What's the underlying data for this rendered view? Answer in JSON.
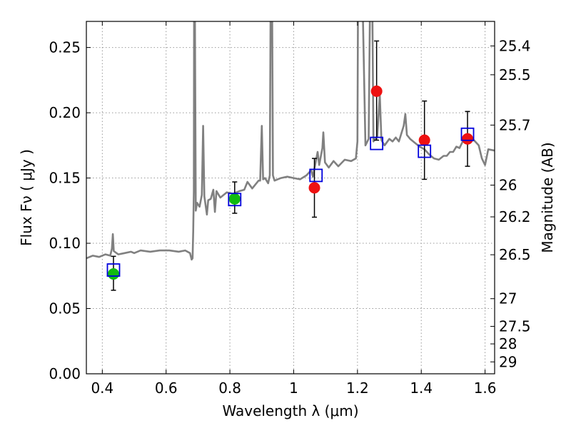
{
  "chart_data": {
    "type": "scatter",
    "xlabel": "Wavelength  λ (μm)",
    "ylabel": "Flux  Fν ( μJy )",
    "ylabel_right": "Magnitude (AB)",
    "xlim": [
      0.35,
      1.63
    ],
    "ylim": [
      0.0,
      0.27
    ],
    "grid": true,
    "x_ticks": [
      {
        "value": 0.4,
        "label": "0.4"
      },
      {
        "value": 0.6,
        "label": "0.6"
      },
      {
        "value": 0.8,
        "label": "0.8"
      },
      {
        "value": 1.0,
        "label": "1"
      },
      {
        "value": 1.2,
        "label": "1.2"
      },
      {
        "value": 1.4,
        "label": "1.4"
      },
      {
        "value": 1.6,
        "label": "1.6"
      }
    ],
    "y_ticks": [
      {
        "value": 0.0,
        "label": "0.00"
      },
      {
        "value": 0.05,
        "label": "0.05"
      },
      {
        "value": 0.1,
        "label": "0.10"
      },
      {
        "value": 0.15,
        "label": "0.15"
      },
      {
        "value": 0.2,
        "label": "0.20"
      },
      {
        "value": 0.25,
        "label": "0.25"
      }
    ],
    "right_ticks": [
      {
        "value": 25.4,
        "label": "25.4"
      },
      {
        "value": 25.5,
        "label": "25.5"
      },
      {
        "value": 25.7,
        "label": "25.7"
      },
      {
        "value": 26.0,
        "label": "26"
      },
      {
        "value": 26.2,
        "label": "26.2"
      },
      {
        "value": 26.5,
        "label": "26.5"
      },
      {
        "value": 27.0,
        "label": "27"
      },
      {
        "value": 27.5,
        "label": "27.5"
      },
      {
        "value": 28.0,
        "label": "28"
      },
      {
        "value": 29.0,
        "label": "29"
      }
    ],
    "colors": {
      "spectrum": "#808080",
      "optical_points": "#11bb11",
      "nir_points": "#ee1111",
      "model_boxes": "#0000dd",
      "error_bars": "#000000",
      "grid": "#999999"
    },
    "spectrum": [
      [
        0.35,
        0.0885
      ],
      [
        0.37,
        0.0905
      ],
      [
        0.39,
        0.0895
      ],
      [
        0.41,
        0.0915
      ],
      [
        0.425,
        0.0905
      ],
      [
        0.43,
        0.096
      ],
      [
        0.433,
        0.107
      ],
      [
        0.436,
        0.094
      ],
      [
        0.45,
        0.0915
      ],
      [
        0.47,
        0.0925
      ],
      [
        0.49,
        0.0935
      ],
      [
        0.5,
        0.0925
      ],
      [
        0.52,
        0.0945
      ],
      [
        0.55,
        0.0935
      ],
      [
        0.58,
        0.0945
      ],
      [
        0.61,
        0.0945
      ],
      [
        0.64,
        0.0935
      ],
      [
        0.66,
        0.0945
      ],
      [
        0.675,
        0.0925
      ],
      [
        0.68,
        0.0875
      ],
      [
        0.683,
        0.0885
      ],
      [
        0.685,
        0.109
      ],
      [
        0.687,
        0.14
      ],
      [
        0.688,
        0.3
      ],
      [
        0.69,
        0.3
      ],
      [
        0.693,
        0.125
      ],
      [
        0.697,
        0.131
      ],
      [
        0.705,
        0.128
      ],
      [
        0.712,
        0.137
      ],
      [
        0.716,
        0.19
      ],
      [
        0.72,
        0.136
      ],
      [
        0.728,
        0.122
      ],
      [
        0.732,
        0.133
      ],
      [
        0.74,
        0.134
      ],
      [
        0.748,
        0.141
      ],
      [
        0.753,
        0.124
      ],
      [
        0.758,
        0.14
      ],
      [
        0.77,
        0.135
      ],
      [
        0.79,
        0.139
      ],
      [
        0.81,
        0.138
      ],
      [
        0.83,
        0.14
      ],
      [
        0.845,
        0.141
      ],
      [
        0.855,
        0.147
      ],
      [
        0.87,
        0.142
      ],
      [
        0.88,
        0.145
      ],
      [
        0.89,
        0.148
      ],
      [
        0.895,
        0.148
      ],
      [
        0.9,
        0.19
      ],
      [
        0.904,
        0.149
      ],
      [
        0.91,
        0.15
      ],
      [
        0.92,
        0.146
      ],
      [
        0.925,
        0.152
      ],
      [
        0.928,
        0.3
      ],
      [
        0.932,
        0.3
      ],
      [
        0.935,
        0.152
      ],
      [
        0.94,
        0.148
      ],
      [
        0.96,
        0.15
      ],
      [
        0.98,
        0.151
      ],
      [
        1.0,
        0.15
      ],
      [
        1.02,
        0.149
      ],
      [
        1.04,
        0.152
      ],
      [
        1.055,
        0.156
      ],
      [
        1.06,
        0.151
      ],
      [
        1.075,
        0.17
      ],
      [
        1.08,
        0.16
      ],
      [
        1.09,
        0.173
      ],
      [
        1.093,
        0.185
      ],
      [
        1.098,
        0.162
      ],
      [
        1.11,
        0.158
      ],
      [
        1.125,
        0.163
      ],
      [
        1.14,
        0.159
      ],
      [
        1.16,
        0.164
      ],
      [
        1.18,
        0.163
      ],
      [
        1.195,
        0.165
      ],
      [
        1.2,
        0.178
      ],
      [
        1.202,
        0.3
      ],
      [
        1.215,
        0.3
      ],
      [
        1.225,
        0.175
      ],
      [
        1.235,
        0.18
      ],
      [
        1.24,
        0.3
      ],
      [
        1.246,
        0.3
      ],
      [
        1.25,
        0.178
      ],
      [
        1.262,
        0.182
      ],
      [
        1.27,
        0.214
      ],
      [
        1.275,
        0.179
      ],
      [
        1.285,
        0.175
      ],
      [
        1.3,
        0.18
      ],
      [
        1.31,
        0.178
      ],
      [
        1.32,
        0.181
      ],
      [
        1.33,
        0.178
      ],
      [
        1.345,
        0.19
      ],
      [
        1.35,
        0.199
      ],
      [
        1.355,
        0.183
      ],
      [
        1.365,
        0.18
      ],
      [
        1.38,
        0.177
      ],
      [
        1.395,
        0.174
      ],
      [
        1.41,
        0.172
      ],
      [
        1.425,
        0.168
      ],
      [
        1.44,
        0.165
      ],
      [
        1.455,
        0.164
      ],
      [
        1.47,
        0.167
      ],
      [
        1.48,
        0.167
      ],
      [
        1.49,
        0.17
      ],
      [
        1.5,
        0.17
      ],
      [
        1.51,
        0.174
      ],
      [
        1.52,
        0.173
      ],
      [
        1.53,
        0.178
      ],
      [
        1.54,
        0.182
      ],
      [
        1.55,
        0.178
      ],
      [
        1.565,
        0.179
      ],
      [
        1.58,
        0.175
      ],
      [
        1.59,
        0.165
      ],
      [
        1.6,
        0.16
      ],
      [
        1.61,
        0.172
      ],
      [
        1.63,
        0.171
      ]
    ],
    "optical_points": [
      {
        "x": 0.435,
        "y": 0.0765
      },
      {
        "x": 0.815,
        "y": 0.134
      }
    ],
    "nir_points": [
      {
        "x": 1.065,
        "y": 0.1425
      },
      {
        "x": 1.26,
        "y": 0.2165
      },
      {
        "x": 1.41,
        "y": 0.179
      },
      {
        "x": 1.545,
        "y": 0.18
      }
    ],
    "error_bars": [
      {
        "x": 0.435,
        "low": 0.064,
        "high": 0.09
      },
      {
        "x": 0.815,
        "low": 0.123,
        "high": 0.147
      },
      {
        "x": 1.065,
        "low": 0.12,
        "high": 0.165
      },
      {
        "x": 1.26,
        "low": 0.179,
        "high": 0.255
      },
      {
        "x": 1.41,
        "low": 0.149,
        "high": 0.209
      },
      {
        "x": 1.545,
        "low": 0.159,
        "high": 0.201
      }
    ],
    "model_boxes": [
      {
        "x": 0.435,
        "y": 0.0795
      },
      {
        "x": 0.815,
        "y": 0.1335
      },
      {
        "x": 1.07,
        "y": 0.152
      },
      {
        "x": 1.26,
        "y": 0.1765
      },
      {
        "x": 1.41,
        "y": 0.1705
      },
      {
        "x": 1.545,
        "y": 0.1835
      }
    ]
  }
}
